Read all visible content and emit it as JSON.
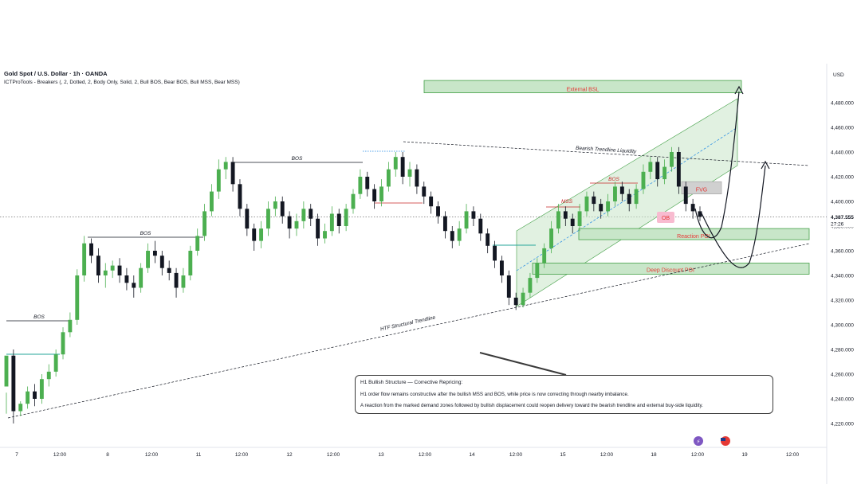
{
  "header": {
    "title": "Gold Spot / U.S. Dollar · 1h · OANDA",
    "indicator": "ICTProTools - Breakers (, 2, Dotted, 2, Body Only, Solid, 2, Bull BOS, Bear BOS, Bull MSS, Bear MSS)"
  },
  "price_axis": {
    "currency": "USD",
    "current_price": "4,387.555",
    "countdown": "27:26",
    "current_price_color": "#131722"
  },
  "annotations": {
    "external_bsl": "External BSL",
    "bearish_trendline_liquidity": "Bearish Trendline Liquidity",
    "htf_trendline": "HTF Structural Trendline",
    "fvg": "FVG",
    "ob": "OB",
    "mss": "MSS",
    "reaction_poi": "Reaction POI",
    "deep_discount_poi": "Deep Discount POI",
    "bos_labels": [
      "BOS",
      "BOS",
      "BOS",
      "BOS"
    ]
  },
  "note": {
    "title": "H1 Bullish Structure — Corrective Repricing:",
    "line1": "H1 order flow remains constructive after the bullish MSS and BOS, while price is now correcting through nearby imbalance.",
    "line2": "A reaction from the marked demand zones followed by bullish displacement could reopen delivery toward the bearish trendline and external buy-side liquidity."
  },
  "colors": {
    "bull": "#26a69a",
    "bull_fill": "#4caf50",
    "bear": "#131722",
    "zone_fill": "#c8e6c9",
    "zone_stroke": "#43a047",
    "label_red": "#e53935",
    "bos_red": "#c62828"
  },
  "chart_data": {
    "type": "candlestick",
    "title": "Gold Spot / U.S. Dollar · 1h · OANDA",
    "ylabel": "USD",
    "ylim": [
      4212,
      4495
    ],
    "y_ticks": [
      "4,220.000",
      "4,240.000",
      "4,260.000",
      "4,280.000",
      "4,300.000",
      "4,320.000",
      "4,340.000",
      "4,360.000",
      "4,380.000",
      "4,400.000",
      "4,420.000",
      "4,440.000",
      "4,460.000",
      "4,480.000"
    ],
    "x_ticks": [
      "7",
      "12:00",
      "8",
      "12:00",
      "11",
      "12:00",
      "12",
      "12:00",
      "13",
      "12:00",
      "14",
      "12:00",
      "15",
      "12:00",
      "18",
      "12:00",
      "19",
      "12:00"
    ],
    "grid": false,
    "current_price": 4387.555,
    "levels": {
      "external_bsl": [
        4488,
        4498
      ],
      "fvg": [
        4406,
        4416
      ],
      "reaction_poi": [
        4369,
        4378
      ],
      "deep_discount_poi": [
        4341,
        4350
      ]
    },
    "bos_prices": [
      4304,
      4372,
      4435,
      4417
    ],
    "candles": [
      [
        4250,
        4275,
        4245,
        4228
      ],
      [
        4275,
        4230,
        4280,
        4220
      ],
      [
        4230,
        4236,
        4238,
        4226
      ],
      [
        4236,
        4246,
        4250,
        4232
      ],
      [
        4246,
        4240,
        4252,
        4234
      ],
      [
        4240,
        4256,
        4260,
        4236
      ],
      [
        4256,
        4262,
        4268,
        4250
      ],
      [
        4262,
        4276,
        4280,
        4258
      ],
      [
        4276,
        4294,
        4298,
        4272
      ],
      [
        4294,
        4304,
        4310,
        4290
      ],
      [
        4304,
        4340,
        4345,
        4300
      ],
      [
        4340,
        4366,
        4372,
        4335
      ],
      [
        4366,
        4356,
        4370,
        4350
      ],
      [
        4356,
        4340,
        4362,
        4334
      ],
      [
        4340,
        4344,
        4350,
        4330
      ],
      [
        4344,
        4348,
        4352,
        4338
      ],
      [
        4348,
        4340,
        4354,
        4334
      ],
      [
        4340,
        4334,
        4346,
        4328
      ],
      [
        4334,
        4330,
        4340,
        4322
      ],
      [
        4330,
        4346,
        4350,
        4326
      ],
      [
        4346,
        4360,
        4366,
        4342
      ],
      [
        4360,
        4356,
        4368,
        4350
      ],
      [
        4356,
        4346,
        4360,
        4340
      ],
      [
        4346,
        4342,
        4352,
        4336
      ],
      [
        4342,
        4330,
        4346,
        4322
      ],
      [
        4330,
        4340,
        4346,
        4326
      ],
      [
        4340,
        4360,
        4364,
        4336
      ],
      [
        4360,
        4372,
        4378,
        4356
      ],
      [
        4372,
        4392,
        4398,
        4368
      ],
      [
        4392,
        4408,
        4414,
        4388
      ],
      [
        4408,
        4426,
        4434,
        4402
      ],
      [
        4426,
        4432,
        4436,
        4418
      ],
      [
        4432,
        4414,
        4436,
        4408
      ],
      [
        4414,
        4394,
        4418,
        4388
      ],
      [
        4394,
        4378,
        4398,
        4372
      ],
      [
        4378,
        4368,
        4382,
        4360
      ],
      [
        4368,
        4378,
        4384,
        4362
      ],
      [
        4378,
        4394,
        4400,
        4372
      ],
      [
        4394,
        4400,
        4404,
        4388
      ],
      [
        4400,
        4388,
        4404,
        4382
      ],
      [
        4388,
        4378,
        4392,
        4370
      ],
      [
        4378,
        4384,
        4390,
        4372
      ],
      [
        4384,
        4394,
        4400,
        4378
      ],
      [
        4394,
        4386,
        4398,
        4380
      ],
      [
        4386,
        4370,
        4390,
        4364
      ],
      [
        4370,
        4376,
        4382,
        4366
      ],
      [
        4376,
        4390,
        4396,
        4372
      ],
      [
        4390,
        4380,
        4394,
        4374
      ],
      [
        4380,
        4394,
        4398,
        4376
      ],
      [
        4394,
        4406,
        4410,
        4390
      ],
      [
        4406,
        4420,
        4426,
        4402
      ],
      [
        4420,
        4410,
        4424,
        4404
      ],
      [
        4410,
        4400,
        4414,
        4394
      ],
      [
        4400,
        4412,
        4418,
        4396
      ],
      [
        4412,
        4426,
        4432,
        4408
      ],
      [
        4426,
        4436,
        4440,
        4420
      ],
      [
        4436,
        4420,
        4440,
        4414
      ],
      [
        4420,
        4426,
        4432,
        4412
      ],
      [
        4426,
        4412,
        4430,
        4406
      ],
      [
        4412,
        4404,
        4416,
        4398
      ],
      [
        4404,
        4396,
        4408,
        4390
      ],
      [
        4396,
        4388,
        4400,
        4382
      ],
      [
        4388,
        4376,
        4392,
        4370
      ],
      [
        4376,
        4368,
        4380,
        4362
      ],
      [
        4368,
        4378,
        4384,
        4364
      ],
      [
        4378,
        4392,
        4398,
        4374
      ],
      [
        4392,
        4386,
        4396,
        4380
      ],
      [
        4386,
        4374,
        4390,
        4368
      ],
      [
        4374,
        4364,
        4378,
        4358
      ],
      [
        4364,
        4352,
        4368,
        4346
      ],
      [
        4352,
        4340,
        4356,
        4334
      ],
      [
        4340,
        4322,
        4344,
        4316
      ],
      [
        4322,
        4316,
        4326,
        4312
      ],
      [
        4316,
        4326,
        4330,
        4314
      ],
      [
        4326,
        4338,
        4342,
        4322
      ],
      [
        4338,
        4350,
        4354,
        4334
      ],
      [
        4350,
        4362,
        4366,
        4346
      ],
      [
        4362,
        4378,
        4384,
        4358
      ],
      [
        4378,
        4392,
        4398,
        4374
      ],
      [
        4392,
        4386,
        4396,
        4380
      ],
      [
        4386,
        4380,
        4390,
        4374
      ],
      [
        4380,
        4392,
        4398,
        4376
      ],
      [
        4392,
        4404,
        4408,
        4388
      ],
      [
        4404,
        4398,
        4408,
        4392
      ],
      [
        4398,
        4392,
        4402,
        4386
      ],
      [
        4392,
        4400,
        4406,
        4388
      ],
      [
        4400,
        4412,
        4416,
        4396
      ],
      [
        4412,
        4406,
        4416,
        4400
      ],
      [
        4406,
        4398,
        4410,
        4392
      ],
      [
        4398,
        4410,
        4414,
        4394
      ],
      [
        4410,
        4424,
        4430,
        4406
      ],
      [
        4424,
        4432,
        4436,
        4418
      ],
      [
        4432,
        4418,
        4436,
        4412
      ],
      [
        4418,
        4428,
        4434,
        4414
      ],
      [
        4428,
        4440,
        4444,
        4424
      ],
      [
        4440,
        4412,
        4444,
        4406
      ],
      [
        4412,
        4398,
        4416,
        4392
      ],
      [
        4398,
        4392,
        4402,
        4386
      ],
      [
        4392,
        4387.5,
        4396,
        4384
      ]
    ]
  }
}
